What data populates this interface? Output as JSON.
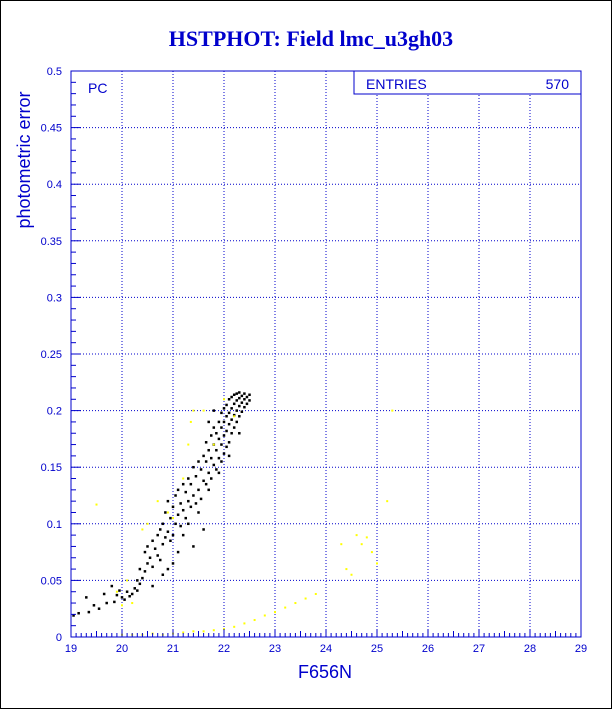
{
  "colors": {
    "axis": "#0000cc",
    "grid": "#0000cc",
    "series_black": "#000000",
    "series_yellow": "#ffff00",
    "background": "#ffffff"
  },
  "chart_data": {
    "type": "scatter",
    "title": "HSTPHOT: Field lmc_u3gh03",
    "xlabel": "F656N",
    "ylabel": "photometric error",
    "xlim": [
      19,
      29
    ],
    "ylim": [
      0,
      0.5
    ],
    "xticks": [
      "19",
      "20",
      "21",
      "22",
      "23",
      "24",
      "25",
      "26",
      "27",
      "28",
      "29"
    ],
    "yticks": [
      "0",
      "0.05",
      "0.1",
      "0.15",
      "0.2",
      "0.25",
      "0.3",
      "0.35",
      "0.4",
      "0.45",
      "0.5"
    ],
    "grid": true,
    "annotation": "PC",
    "stats_box": {
      "label": "ENTRIES",
      "value": "570"
    },
    "series": [
      {
        "color": "black",
        "points": [
          [
            19.05,
            0.019
          ],
          [
            19.15,
            0.021
          ],
          [
            19.3,
            0.035
          ],
          [
            19.35,
            0.022
          ],
          [
            19.45,
            0.028
          ],
          [
            19.55,
            0.025
          ],
          [
            19.65,
            0.038
          ],
          [
            19.7,
            0.03
          ],
          [
            19.8,
            0.045
          ],
          [
            19.85,
            0.031
          ],
          [
            19.9,
            0.037
          ],
          [
            19.95,
            0.041
          ],
          [
            20.0,
            0.035
          ],
          [
            20.05,
            0.033
          ],
          [
            20.1,
            0.04
          ],
          [
            20.15,
            0.036
          ],
          [
            20.2,
            0.038
          ],
          [
            20.25,
            0.043
          ],
          [
            20.3,
            0.05
          ],
          [
            20.3,
            0.041
          ],
          [
            20.35,
            0.06
          ],
          [
            20.35,
            0.047
          ],
          [
            20.4,
            0.052
          ],
          [
            20.45,
            0.058
          ],
          [
            20.45,
            0.075
          ],
          [
            20.5,
            0.065
          ],
          [
            20.5,
            0.08
          ],
          [
            20.55,
            0.07
          ],
          [
            20.6,
            0.062
          ],
          [
            20.6,
            0.085
          ],
          [
            20.65,
            0.078
          ],
          [
            20.7,
            0.09
          ],
          [
            20.7,
            0.072
          ],
          [
            20.75,
            0.095
          ],
          [
            20.75,
            0.068
          ],
          [
            20.8,
            0.082
          ],
          [
            20.8,
            0.1
          ],
          [
            20.85,
            0.088
          ],
          [
            20.85,
            0.11
          ],
          [
            20.9,
            0.093
          ],
          [
            20.9,
            0.12
          ],
          [
            20.95,
            0.085
          ],
          [
            20.95,
            0.105
          ],
          [
            21.0,
            0.09
          ],
          [
            21.0,
            0.115
          ],
          [
            21.05,
            0.1
          ],
          [
            21.05,
            0.125
          ],
          [
            21.1,
            0.108
          ],
          [
            21.1,
            0.13
          ],
          [
            21.15,
            0.098
          ],
          [
            21.15,
            0.118
          ],
          [
            21.2,
            0.112
          ],
          [
            21.2,
            0.135
          ],
          [
            21.25,
            0.105
          ],
          [
            21.25,
            0.128
          ],
          [
            21.3,
            0.12
          ],
          [
            21.3,
            0.14
          ],
          [
            21.35,
            0.115
          ],
          [
            21.35,
            0.135
          ],
          [
            21.4,
            0.125
          ],
          [
            21.4,
            0.15
          ],
          [
            21.45,
            0.118
          ],
          [
            21.45,
            0.142
          ],
          [
            21.5,
            0.13
          ],
          [
            21.5,
            0.155
          ],
          [
            21.55,
            0.122
          ],
          [
            21.55,
            0.148
          ],
          [
            21.6,
            0.138
          ],
          [
            21.6,
            0.16
          ],
          [
            21.65,
            0.135
          ],
          [
            21.65,
            0.155
          ],
          [
            21.65,
            0.172
          ],
          [
            21.7,
            0.145
          ],
          [
            21.7,
            0.165
          ],
          [
            21.75,
            0.14
          ],
          [
            21.75,
            0.158
          ],
          [
            21.75,
            0.178
          ],
          [
            21.8,
            0.152
          ],
          [
            21.8,
            0.17
          ],
          [
            21.8,
            0.185
          ],
          [
            21.85,
            0.148
          ],
          [
            21.85,
            0.165
          ],
          [
            21.85,
            0.18
          ],
          [
            21.9,
            0.158
          ],
          [
            21.9,
            0.175
          ],
          [
            21.9,
            0.19
          ],
          [
            21.95,
            0.155
          ],
          [
            21.95,
            0.17
          ],
          [
            21.95,
            0.185
          ],
          [
            21.95,
            0.198
          ],
          [
            22.0,
            0.162
          ],
          [
            22.0,
            0.178
          ],
          [
            22.0,
            0.19
          ],
          [
            22.0,
            0.202
          ],
          [
            22.05,
            0.168
          ],
          [
            22.05,
            0.182
          ],
          [
            22.05,
            0.195
          ],
          [
            22.05,
            0.205
          ],
          [
            22.1,
            0.172
          ],
          [
            22.1,
            0.188
          ],
          [
            22.1,
            0.198
          ],
          [
            22.1,
            0.21
          ],
          [
            22.15,
            0.18
          ],
          [
            22.15,
            0.192
          ],
          [
            22.15,
            0.202
          ],
          [
            22.15,
            0.212
          ],
          [
            22.2,
            0.185
          ],
          [
            22.2,
            0.196
          ],
          [
            22.2,
            0.206
          ],
          [
            22.2,
            0.214
          ],
          [
            22.25,
            0.19
          ],
          [
            22.25,
            0.2
          ],
          [
            22.25,
            0.209
          ],
          [
            22.25,
            0.215
          ],
          [
            22.3,
            0.195
          ],
          [
            22.3,
            0.204
          ],
          [
            22.3,
            0.211
          ],
          [
            22.3,
            0.216
          ],
          [
            22.35,
            0.199
          ],
          [
            22.35,
            0.207
          ],
          [
            22.35,
            0.213
          ],
          [
            22.4,
            0.203
          ],
          [
            22.4,
            0.21
          ],
          [
            22.4,
            0.215
          ],
          [
            22.45,
            0.206
          ],
          [
            22.45,
            0.212
          ],
          [
            22.5,
            0.209
          ],
          [
            22.5,
            0.214
          ],
          [
            21.3,
            0.1
          ],
          [
            21.1,
            0.075
          ],
          [
            20.9,
            0.06
          ],
          [
            21.5,
            0.11
          ],
          [
            21.7,
            0.13
          ],
          [
            21.9,
            0.145
          ],
          [
            22.1,
            0.16
          ],
          [
            22.3,
            0.18
          ],
          [
            21.4,
            0.08
          ],
          [
            21.6,
            0.095
          ],
          [
            20.6,
            0.045
          ],
          [
            20.8,
            0.055
          ],
          [
            21.0,
            0.065
          ],
          [
            21.2,
            0.09
          ],
          [
            21.8,
            0.2
          ],
          [
            21.7,
            0.19
          ]
        ]
      },
      {
        "color": "yellow",
        "points": [
          [
            19.5,
            0.117
          ],
          [
            19.9,
            0.04
          ],
          [
            20.0,
            0.028
          ],
          [
            20.1,
            0.05
          ],
          [
            20.2,
            0.03
          ],
          [
            20.4,
            0.095
          ],
          [
            20.5,
            0.1
          ],
          [
            20.7,
            0.12
          ],
          [
            20.9,
            0.11
          ],
          [
            21.0,
            0.105
          ],
          [
            21.2,
            0.14
          ],
          [
            21.3,
            0.17
          ],
          [
            21.35,
            0.19
          ],
          [
            21.4,
            0.2
          ],
          [
            21.6,
            0.2
          ],
          [
            21.8,
            0.17
          ],
          [
            22.0,
            0.21
          ],
          [
            22.2,
            0.195
          ],
          [
            20.0,
            0.002
          ],
          [
            20.2,
            0.002
          ],
          [
            20.4,
            0.002
          ],
          [
            20.6,
            0.003
          ],
          [
            20.8,
            0.002
          ],
          [
            21.0,
            0.003
          ],
          [
            21.2,
            0.004
          ],
          [
            21.4,
            0.005
          ],
          [
            21.6,
            0.005
          ],
          [
            21.8,
            0.006
          ],
          [
            22.0,
            0.007
          ],
          [
            22.2,
            0.009
          ],
          [
            22.4,
            0.012
          ],
          [
            22.6,
            0.015
          ],
          [
            22.8,
            0.019
          ],
          [
            23.0,
            0.022
          ],
          [
            23.2,
            0.026
          ],
          [
            23.4,
            0.03
          ],
          [
            23.6,
            0.034
          ],
          [
            23.8,
            0.038
          ],
          [
            24.3,
            0.082
          ],
          [
            24.4,
            0.06
          ],
          [
            24.5,
            0.055
          ],
          [
            24.6,
            0.09
          ],
          [
            24.7,
            0.082
          ],
          [
            24.8,
            0.088
          ],
          [
            24.9,
            0.075
          ],
          [
            25.0,
            0.065
          ],
          [
            25.2,
            0.12
          ],
          [
            25.3,
            0.2
          ]
        ]
      }
    ]
  }
}
